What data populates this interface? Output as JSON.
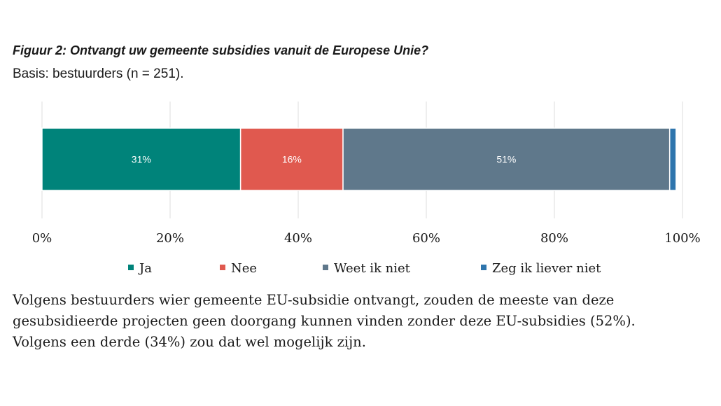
{
  "figure": {
    "title": "Figuur 2: Ontvangt uw gemeente subsidies vanuit de Europese Unie?",
    "subtitle": "Basis: bestuurders (n = 251)."
  },
  "chart_data": {
    "type": "bar",
    "orientation": "horizontal",
    "stacked": true,
    "title": "Figuur 2: Ontvangt uw gemeente subsidies vanuit de Europese Unie?",
    "subtitle": "Basis: bestuurders (n = 251).",
    "categories": [
      ""
    ],
    "series": [
      {
        "name": "Ja",
        "values": [
          31
        ],
        "label": "31%",
        "color": "#00837a"
      },
      {
        "name": "Nee",
        "values": [
          16
        ],
        "label": "16%",
        "color": "#e0594f"
      },
      {
        "name": "Weet ik niet",
        "values": [
          51
        ],
        "label": "51%",
        "color": "#5f788b"
      },
      {
        "name": "Zeg ik liever niet",
        "values": [
          1
        ],
        "label": "",
        "color": "#2e75ad"
      }
    ],
    "xlim": [
      0,
      100
    ],
    "xticks": [
      0,
      20,
      40,
      60,
      80,
      100
    ],
    "xtick_labels": [
      "0%",
      "20%",
      "40%",
      "60%",
      "80%",
      "100%"
    ],
    "grid": true,
    "legend_position": "bottom"
  },
  "body_text": [
    "Volgens bestuurders wier gemeente EU-subsidie ontvangt, zouden de meeste van deze",
    "gesubsidieerde projecten geen doorgang kunnen vinden zonder deze EU-subsidies (52%).",
    "Volgens een derde (34%) zou dat wel mogelijk zijn."
  ]
}
